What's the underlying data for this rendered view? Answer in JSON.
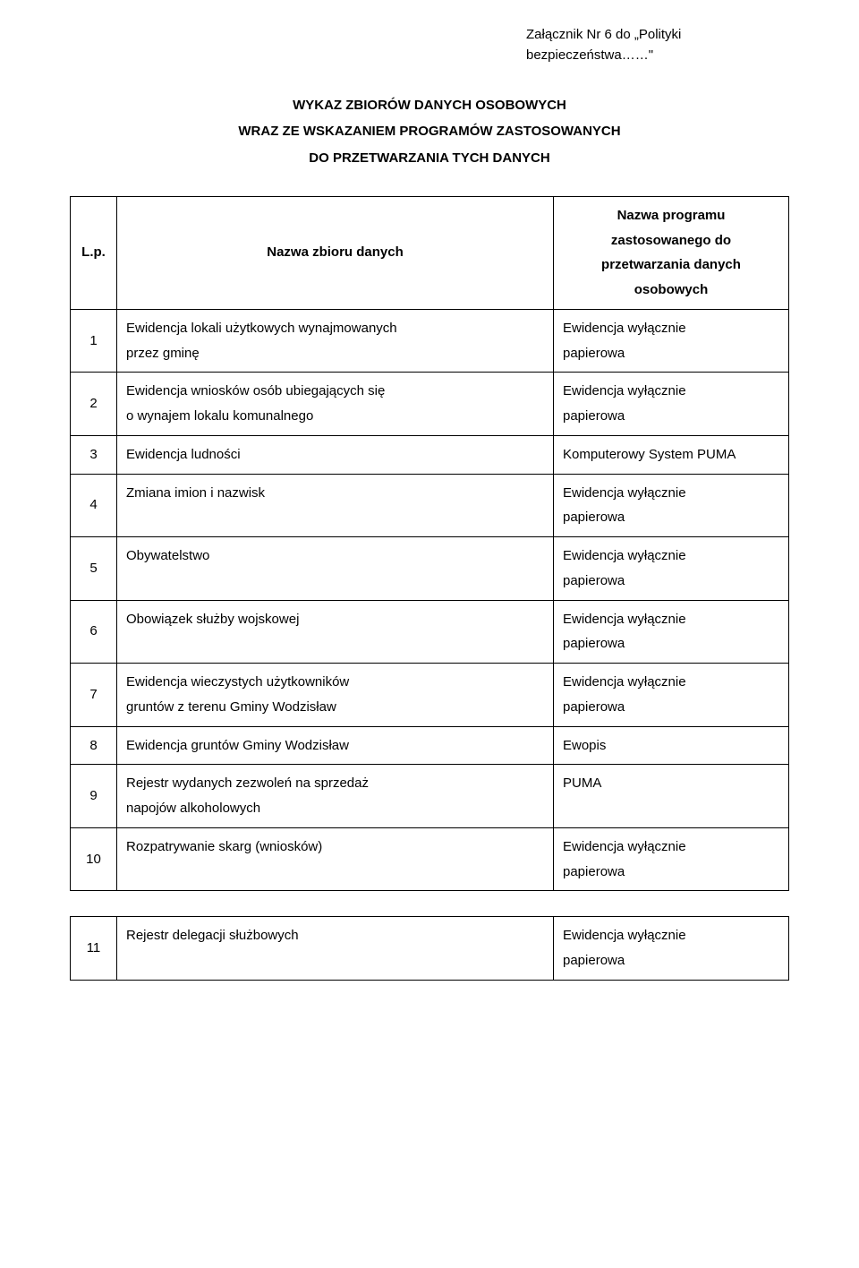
{
  "attachment": {
    "line1": "Załącznik Nr 6  do „Polityki",
    "line2": "bezpieczeństwa……\""
  },
  "title": {
    "line1": "WYKAZ ZBIORÓW DANYCH OSOBOWYCH",
    "line2": "WRAZ ZE WSKAZANIEM PROGRAMÓW ZASTOSOWANYCH",
    "line3": "DO PRZETWARZANIA TYCH DANYCH"
  },
  "headers": {
    "lp": "L.p.",
    "name": "Nazwa zbioru danych",
    "prog_l1": "Nazwa programu",
    "prog_l2": "zastosowanego do",
    "prog_l3": "przetwarzania danych",
    "prog_l4": "osobowych"
  },
  "rows": [
    {
      "n": "1",
      "name_l1": "Ewidencja lokali użytkowych wynajmowanych",
      "name_l2": "przez gminę",
      "prog_l1": "Ewidencja wyłącznie",
      "prog_l2": "papierowa"
    },
    {
      "n": "2",
      "name_l1": "Ewidencja wniosków osób ubiegających się",
      "name_l2": "o wynajem lokalu komunalnego",
      "prog_l1": "Ewidencja wyłącznie",
      "prog_l2": "papierowa"
    },
    {
      "n": "3",
      "name_l1": "Ewidencja ludności",
      "name_l2": "",
      "prog_l1": "Komputerowy System PUMA",
      "prog_l2": ""
    },
    {
      "n": "4",
      "name_l1": "Zmiana imion i nazwisk",
      "name_l2": "",
      "prog_l1": "Ewidencja wyłącznie",
      "prog_l2": "papierowa"
    },
    {
      "n": "5",
      "name_l1": "Obywatelstwo",
      "name_l2": "",
      "prog_l1": "Ewidencja wyłącznie",
      "prog_l2": "papierowa"
    },
    {
      "n": "6",
      "name_l1": "Obowiązek służby wojskowej",
      "name_l2": "",
      "prog_l1": "Ewidencja wyłącznie",
      "prog_l2": "papierowa"
    },
    {
      "n": "7",
      "name_l1": "Ewidencja wieczystych użytkowników",
      "name_l2": "gruntów z terenu Gminy Wodzisław",
      "prog_l1": "Ewidencja wyłącznie",
      "prog_l2": "papierowa"
    },
    {
      "n": "8",
      "name_l1": "Ewidencja gruntów Gminy Wodzisław",
      "name_l2": "",
      "prog_l1": "Ewopis",
      "prog_l2": ""
    },
    {
      "n": "9",
      "name_l1": "Rejestr wydanych zezwoleń na sprzedaż",
      "name_l2": "napojów alkoholowych",
      "prog_l1": "PUMA",
      "prog_l2": ""
    },
    {
      "n": "10",
      "name_l1": "Rozpatrywanie skarg (wniosków)",
      "name_l2": "",
      "prog_l1": "Ewidencja wyłącznie",
      "prog_l2": "papierowa"
    }
  ],
  "bottom_row": {
    "n": "11",
    "name_l1": "Rejestr delegacji służbowych",
    "prog_l1": "Ewidencja wyłącznie",
    "prog_l2": "papierowa"
  }
}
